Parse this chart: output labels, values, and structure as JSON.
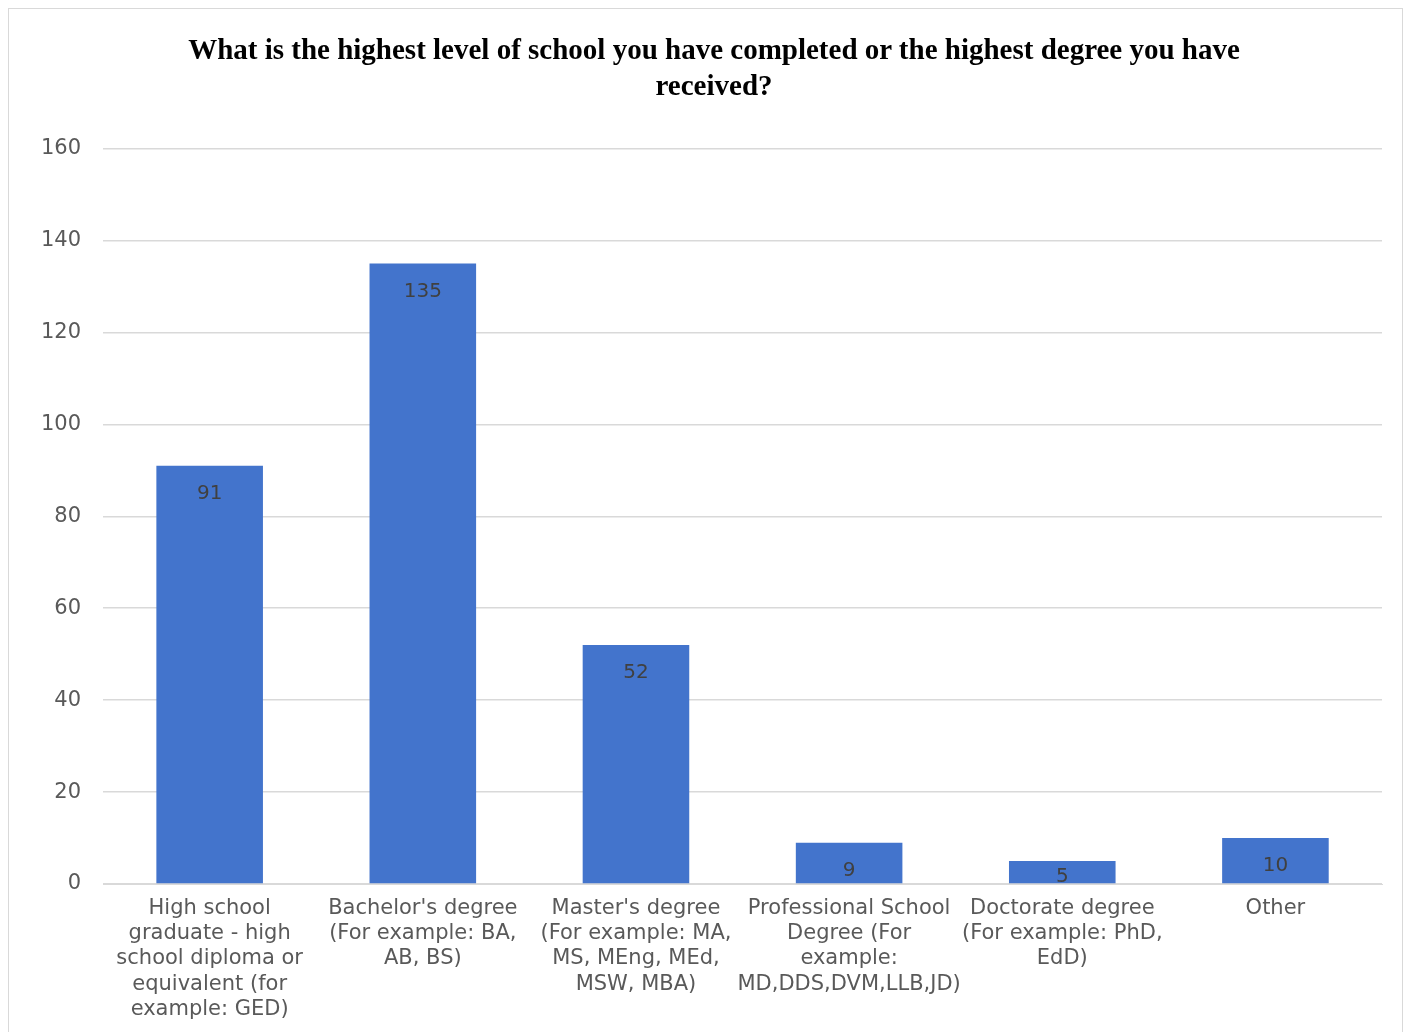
{
  "chart_data": {
    "type": "bar",
    "title": "What is the highest level of school you have completed or the highest degree you have received?",
    "categories": [
      "High school graduate - high school diploma or equivalent (for example: GED)",
      "Bachelor's degree (For example: BA, AB, BS)",
      "Master's degree (For example: MA, MS, MEng, MEd, MSW, MBA)",
      "Professional School Degree (For example: MD,DDS,DVM,LLB,JD)",
      "Doctorate degree (For example: PhD, EdD)",
      "Other"
    ],
    "values": [
      91,
      135,
      52,
      9,
      5,
      10
    ],
    "color": "#4374cc",
    "ylim": [
      0,
      160
    ],
    "yticks": [
      0,
      20,
      40,
      60,
      80,
      100,
      120,
      140,
      160
    ],
    "grid": "y",
    "data_labels": true,
    "legend": false
  }
}
